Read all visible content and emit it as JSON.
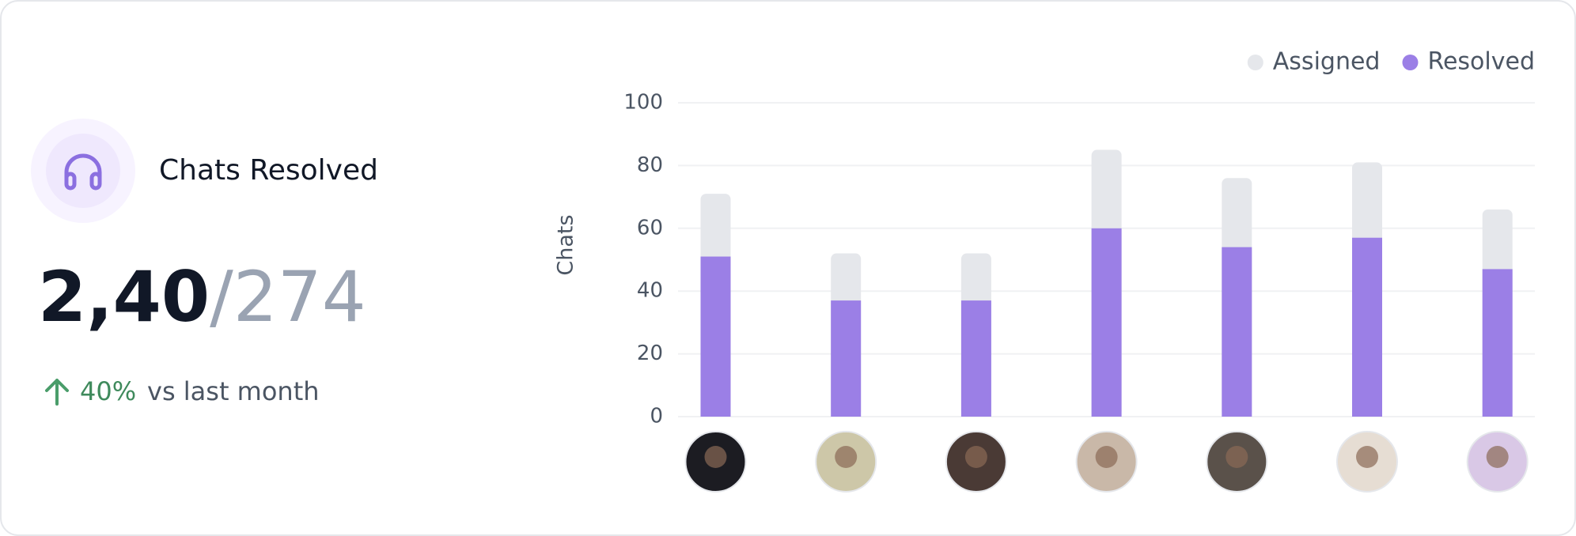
{
  "title": "Chats Resolved",
  "stat": {
    "value": "2,40",
    "total": "/274",
    "change": "40%",
    "change_note": "vs last month"
  },
  "chart_data": {
    "type": "bar",
    "y_label": "Chats",
    "categories": [
      null,
      null,
      null,
      null,
      null,
      null,
      null
    ],
    "series": [
      {
        "name": "Assigned",
        "color": "#e5e7eb",
        "values": [
          71,
          52,
          52,
          85,
          76,
          81,
          66
        ]
      },
      {
        "name": "Resolved",
        "color": "#9b7fe6",
        "values": [
          51,
          37,
          37,
          60,
          54,
          57,
          47
        ]
      }
    ],
    "ylim": [
      0,
      100
    ],
    "yticks": [
      0,
      20,
      40,
      60,
      80,
      100
    ],
    "grid": true,
    "legend": "top-right"
  }
}
